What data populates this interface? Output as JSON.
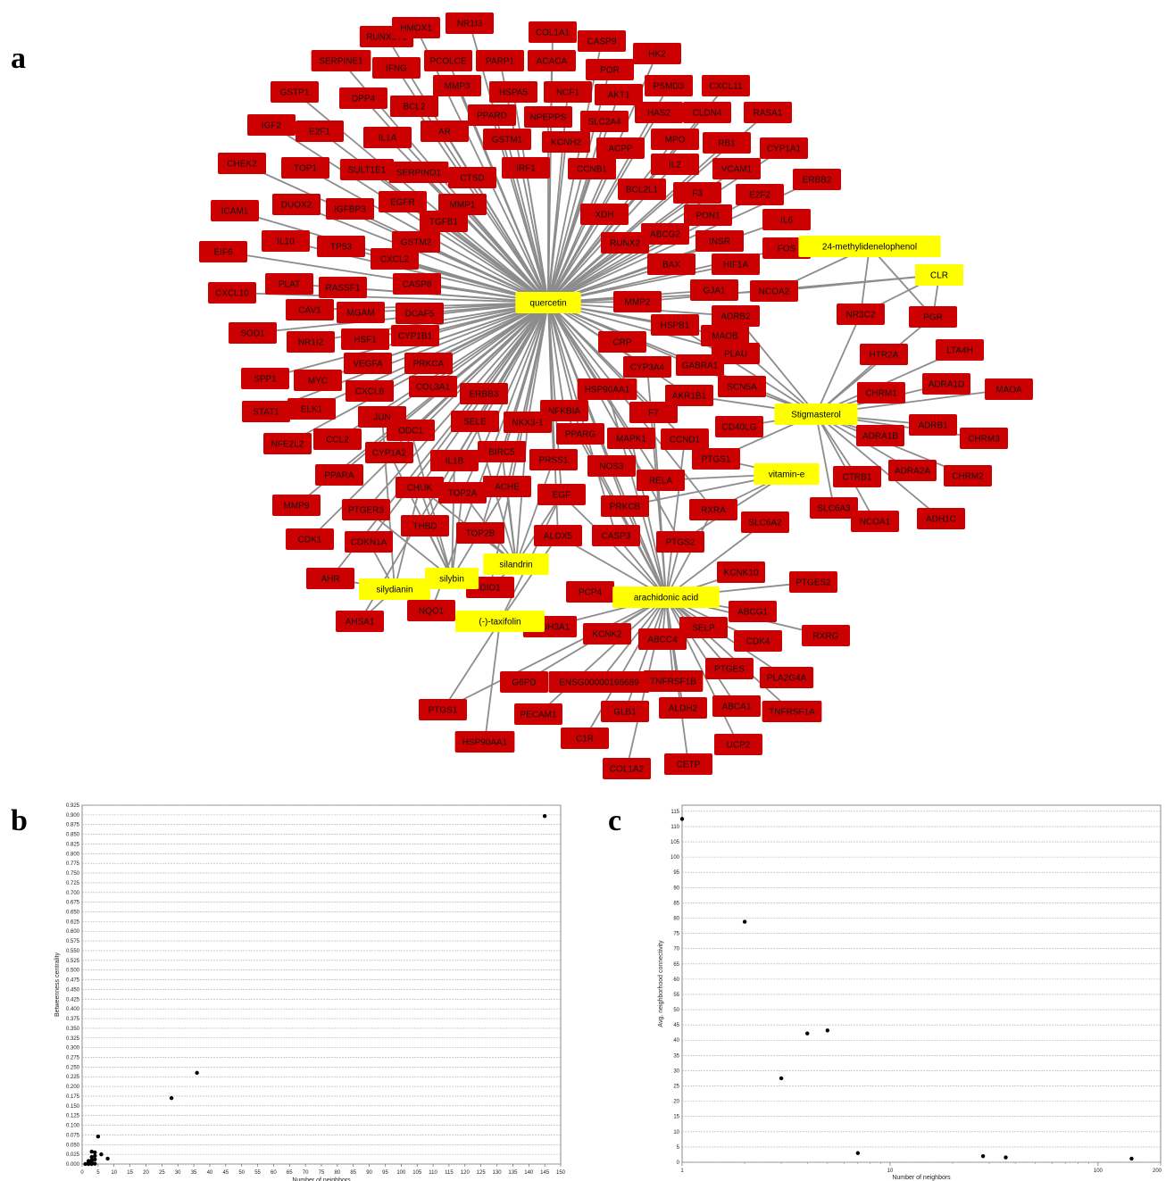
{
  "panels": {
    "a": {
      "label": "a"
    },
    "b": {
      "label": "b"
    },
    "c": {
      "label": "c"
    }
  },
  "colors": {
    "target_fill": "#cc0000",
    "target_text": "#111111",
    "compound_fill": "#ffff00",
    "compound_text": "#000000",
    "edge": "#8c8c8c",
    "plot_border": "#888888",
    "gridline": "#b0b0b0",
    "point": "#000000"
  },
  "network": {
    "compounds": [
      {
        "id": "quercetin",
        "label": "quercetin"
      },
      {
        "id": "stigmasterol",
        "label": "Stigmasterol"
      },
      {
        "id": "arachidonic",
        "label": "arachidonic acid"
      },
      {
        "id": "silandrin",
        "label": "silandrin"
      },
      {
        "id": "silybin",
        "label": "silybin"
      },
      {
        "id": "silydianin",
        "label": "silydianin"
      },
      {
        "id": "taxifolin",
        "label": "(-)-taxifolin"
      },
      {
        "id": "vitamine",
        "label": "vitamin-e"
      },
      {
        "id": "clr",
        "label": "CLR"
      },
      {
        "id": "methyl",
        "label": "24-methylidenelophenol"
      }
    ],
    "targets": [
      "RUNX1T1",
      "HMOX1",
      "NR1I3",
      "COL1A1",
      "CASP9",
      "SERPINE1",
      "IFNG",
      "PCOLCE",
      "PARP1",
      "ACACA",
      "HK2",
      "GSTP1",
      "DPP4",
      "MMP3",
      "HSPA5",
      "NCF1",
      "POR",
      "PSMD3",
      "CXCL11",
      "IGF2",
      "E2F1",
      "BCL2",
      "PPARD",
      "NPEPPS",
      "AKT1",
      "HAS2",
      "CLDN4",
      "RASA1",
      "CHEK2",
      "TOP1",
      "IL1A",
      "AR",
      "GSTM1",
      "KCNH2",
      "SLC2A4",
      "ACPP",
      "MPO",
      "RB1",
      "CYP1A1",
      "SULT1E1",
      "SERPIND1",
      "CTSD",
      "IRF1",
      "CCNB1",
      "IL2",
      "VCAM1",
      "ERBB2",
      "ICAM1",
      "DUOX2",
      "IGFBP3",
      "EGFR",
      "MMP1",
      "BCL2L1",
      "F3",
      "E2F2",
      "TGFB1",
      "XDH",
      "PON1",
      "IL6",
      "EIF6",
      "IL10",
      "TP53",
      "GSTM2",
      "CXCL2",
      "ABCG2",
      "RUNX2",
      "INSR",
      "FOS",
      "CASP8",
      "BAX",
      "HIF1A",
      "CXCL10",
      "PLAT",
      "RASSF1",
      "CAV1",
      "MGAM",
      "DCAF5",
      "MMP2",
      "GJA1",
      "NCOA2",
      "SOD1",
      "NR1I2",
      "HSF1",
      "CYP1B1",
      "HSPB1",
      "ADRB2",
      "MAOB",
      "CRP",
      "PLAU",
      "SPP1",
      "MYC",
      "VEGFA",
      "PRKCA",
      "CYP3A4",
      "GABRA1",
      "CXCL8",
      "COL3A1",
      "ERBB3",
      "HSP90AA1",
      "SCN5A",
      "STAT1",
      "ELK1",
      "JUN",
      "NFKBIA",
      "AKR1B1",
      "F7",
      "CD40LG",
      "ODC1",
      "SELE",
      "NKX3-1",
      "PPARG",
      "MAPK1",
      "NFE2L2",
      "CCL2",
      "CYP1A2",
      "IL1B",
      "BIRC5",
      "PRSS1",
      "CCND1",
      "PTGS1",
      "PPARA",
      "NOS3",
      "RELA",
      "CHUK",
      "TOP2A",
      "ACHE",
      "EGF",
      "PRKCB",
      "RXRA",
      "MMP9",
      "PTGER3",
      "THBD",
      "TOP2B",
      "ALOX5",
      "CASP3",
      "PTGS2",
      "SLC6A2",
      "CDK1",
      "CDKN1A",
      "AHR",
      "DIO1",
      "NQO1",
      "PCP4",
      "AHSA1",
      "KCNK10",
      "PTGES2",
      "ALDH3A1",
      "KCNK2",
      "SELP",
      "ABCG1",
      "ABCC4",
      "CDK4",
      "RXRG",
      "G6PD",
      "ENSG00000196689",
      "TNFRSF1B",
      "PTGES",
      "PLA2G4A",
      "PECAM1",
      "GLB1",
      "ALDH2",
      "ABCA1",
      "TNFRSF1A",
      "C1R",
      "UCP2",
      "COL1A2",
      "CETP",
      "NR3C2",
      "PGR",
      "HTR2A",
      "LTA4H",
      "CHRM1",
      "ADRA1D",
      "MAOA",
      "ADRB1",
      "ADRA1B",
      "CHRM3",
      "CTRB1",
      "ADRA2A",
      "CHRM2",
      "SLC6A3",
      "NCOA1",
      "ADH1C"
    ]
  },
  "chart_data": [
    {
      "type": "scatter",
      "panel": "b",
      "xlabel": "Number of neighbors",
      "ylabel": "Betweenness centrality",
      "xlim": [
        0,
        150
      ],
      "ylim": [
        0,
        0.925
      ],
      "xticks": [
        "0",
        "5",
        "10",
        "15",
        "20",
        "25",
        "30",
        "35",
        "40",
        "45",
        "50",
        "55",
        "60",
        "65",
        "70",
        "75",
        "80",
        "85",
        "90",
        "95",
        "100",
        "105",
        "110",
        "115",
        "120",
        "125",
        "130",
        "135",
        "140",
        "145",
        "150"
      ],
      "yticks": [
        "0.000",
        "0.025",
        "0.050",
        "0.075",
        "0.100",
        "0.125",
        "0.150",
        "0.175",
        "0.200",
        "0.225",
        "0.250",
        "0.275",
        "0.300",
        "0.325",
        "0.350",
        "0.375",
        "0.400",
        "0.425",
        "0.450",
        "0.475",
        "0.500",
        "0.525",
        "0.550",
        "0.575",
        "0.600",
        "0.625",
        "0.650",
        "0.675",
        "0.700",
        "0.725",
        "0.750",
        "0.775",
        "0.800",
        "0.825",
        "0.850",
        "0.875",
        "0.900",
        "0.925"
      ],
      "grid": true,
      "points": [
        {
          "x": 145,
          "y": 0.897
        },
        {
          "x": 36,
          "y": 0.235
        },
        {
          "x": 28,
          "y": 0.17
        },
        {
          "x": 5,
          "y": 0.071
        },
        {
          "x": 3,
          "y": 0.032
        },
        {
          "x": 4,
          "y": 0.03
        },
        {
          "x": 6,
          "y": 0.025
        },
        {
          "x": 4,
          "y": 0.021
        },
        {
          "x": 3,
          "y": 0.018
        },
        {
          "x": 8,
          "y": 0.014
        },
        {
          "x": 4,
          "y": 0.012
        },
        {
          "x": 3,
          "y": 0.01
        },
        {
          "x": 2,
          "y": 0.008
        },
        {
          "x": 3,
          "y": 0.006
        },
        {
          "x": 2,
          "y": 0.004
        },
        {
          "x": 3,
          "y": 0.003
        },
        {
          "x": 2,
          "y": 0.002
        },
        {
          "x": 1,
          "y": 0.0
        },
        {
          "x": 2,
          "y": 0.0
        },
        {
          "x": 3,
          "y": 0.0
        },
        {
          "x": 4,
          "y": 0.001
        }
      ]
    },
    {
      "type": "scatter",
      "panel": "c",
      "xlabel": "Number of neighbors",
      "ylabel": "Avg. neighborhood connectivity",
      "xscale": "log",
      "xlim": [
        1,
        200
      ],
      "ylim": [
        0,
        117
      ],
      "xticks": [
        {
          "v": 1,
          "label": "1"
        },
        {
          "v": 10,
          "label": "10"
        },
        {
          "v": 100,
          "label": "100"
        },
        {
          "v": 200,
          "label": "200"
        }
      ],
      "yticks": [
        "0",
        "5",
        "10",
        "15",
        "20",
        "25",
        "30",
        "35",
        "40",
        "45",
        "50",
        "55",
        "60",
        "65",
        "70",
        "75",
        "80",
        "85",
        "90",
        "95",
        "100",
        "105",
        "110",
        "115"
      ],
      "grid": true,
      "points": [
        {
          "x": 1,
          "y": 112.5
        },
        {
          "x": 2,
          "y": 78.8
        },
        {
          "x": 3,
          "y": 27.5
        },
        {
          "x": 4,
          "y": 42.2
        },
        {
          "x": 5,
          "y": 43.2
        },
        {
          "x": 7,
          "y": 3.0
        },
        {
          "x": 28,
          "y": 2.0
        },
        {
          "x": 36,
          "y": 1.6
        },
        {
          "x": 145,
          "y": 1.2
        }
      ]
    }
  ]
}
